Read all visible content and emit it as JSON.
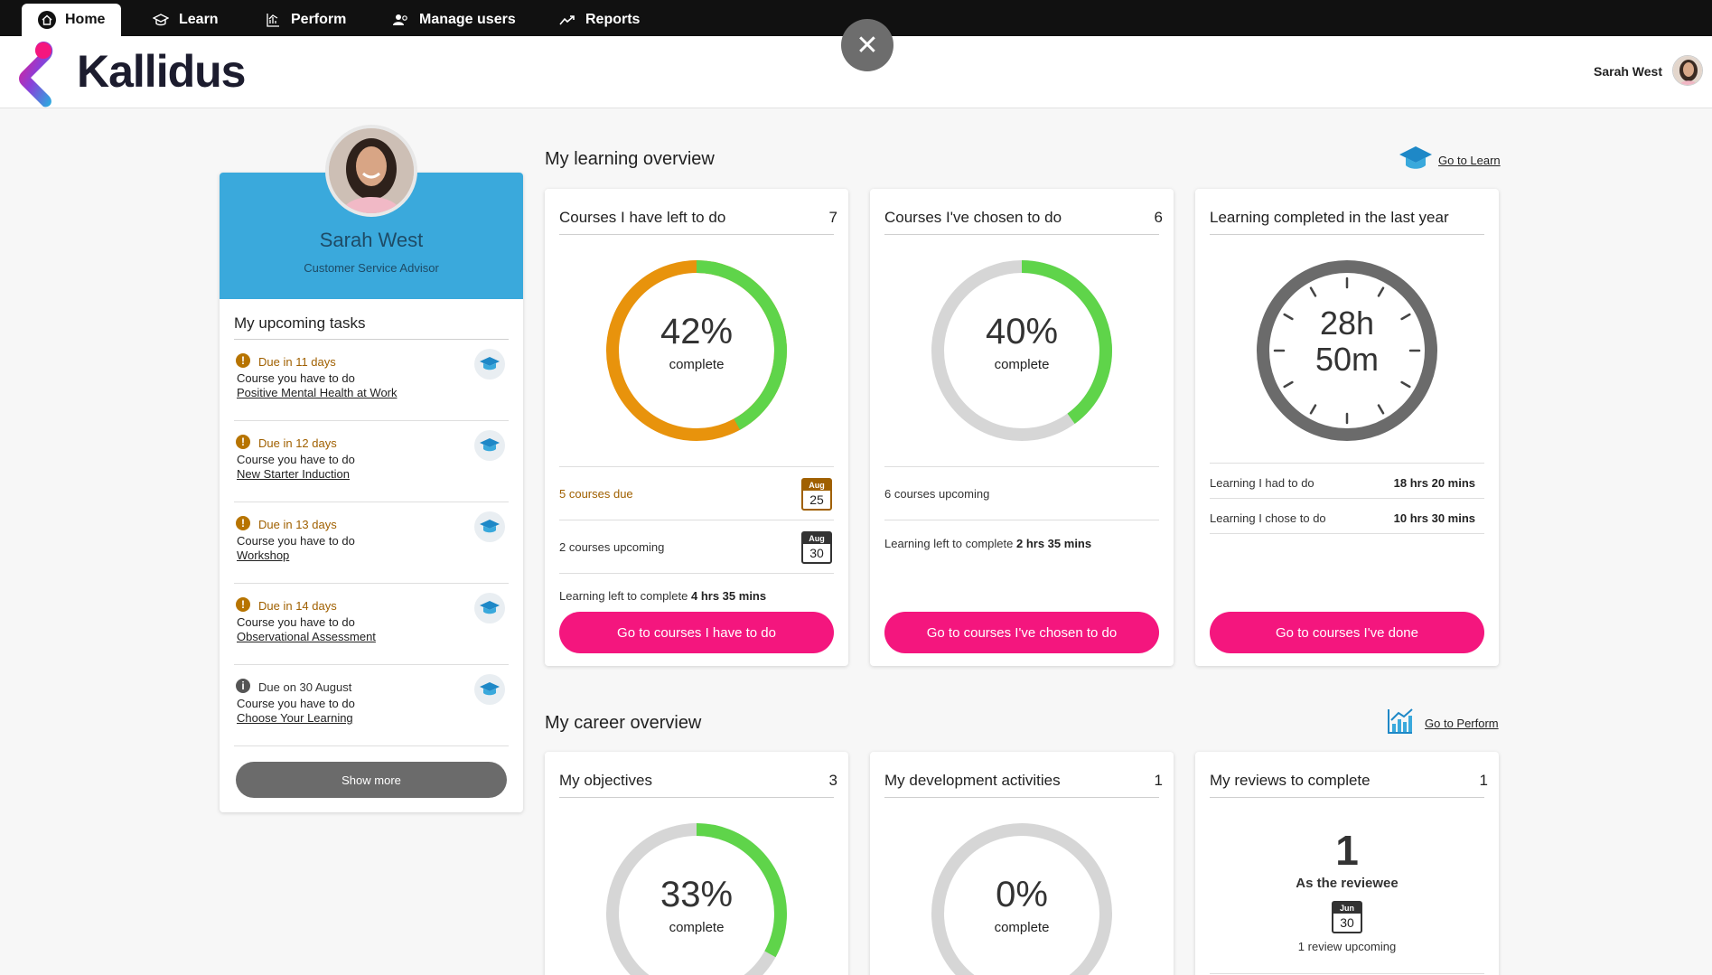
{
  "nav": {
    "tabs": [
      {
        "label": "Home",
        "icon": "home-icon"
      },
      {
        "label": "Learn",
        "icon": "graduation-cap-icon"
      },
      {
        "label": "Perform",
        "icon": "chart-icon"
      },
      {
        "label": "Manage users",
        "icon": "users-icon"
      },
      {
        "label": "Reports",
        "icon": "trend-icon"
      }
    ]
  },
  "header": {
    "brand": "Kallidus",
    "user_name": "Sarah West",
    "close_icon": "close-icon"
  },
  "profile": {
    "name": "Sarah West",
    "role": "Customer Service Advisor",
    "tasks_title": "My upcoming tasks",
    "tasks": [
      {
        "due": "Due in 11 days",
        "kind": "Course you have to do",
        "link": "Positive Mental Health at Work",
        "urgent": true
      },
      {
        "due": "Due in 12 days",
        "kind": "Course you have to do",
        "link": "New Starter Induction",
        "urgent": true
      },
      {
        "due": "Due in 13 days",
        "kind": "Course you have to do",
        "link": "Workshop",
        "urgent": true
      },
      {
        "due": "Due in 14 days",
        "kind": "Course you have to do",
        "link": "Observational Assessment",
        "urgent": true
      },
      {
        "due": "Due on 30 August",
        "kind": "Course you have to do",
        "link": "Choose Your Learning",
        "urgent": false
      }
    ],
    "show_more": "Show more"
  },
  "learning": {
    "title": "My learning overview",
    "link": "Go to Learn",
    "cards": {
      "left_to_do": {
        "title": "Courses I have left to do",
        "count": "7",
        "pct": "42%",
        "pct_value": 0.42,
        "sub": "complete",
        "due_text": "5 courses due",
        "due_cal_month": "Aug",
        "due_cal_day": "25",
        "upcoming_text": "2 courses upcoming",
        "up_cal_month": "Aug",
        "up_cal_day": "30",
        "left_label": "Learning left to complete",
        "left_value": "4 hrs 35 mins",
        "button": "Go to courses I have to do"
      },
      "chosen": {
        "title": "Courses I've chosen to do",
        "count": "6",
        "pct": "40%",
        "pct_value": 0.4,
        "sub": "complete",
        "upcoming_text": "6 courses upcoming",
        "left_label": "Learning left to complete",
        "left_value": "2 hrs 35 mins",
        "button": "Go to courses I've chosen to do"
      },
      "completed": {
        "title": "Learning completed in the last year",
        "hours": "28h",
        "mins": "50m",
        "had_label": "Learning I had to do",
        "had_value": "18 hrs 20 mins",
        "chose_label": "Learning I chose to do",
        "chose_value": "10 hrs 30 mins",
        "button": "Go to courses I've done"
      }
    }
  },
  "career": {
    "title": "My career overview",
    "link": "Go to Perform",
    "cards": {
      "objectives": {
        "title": "My objectives",
        "count": "3",
        "pct": "33%",
        "pct_value": 0.33,
        "sub": "complete"
      },
      "development": {
        "title": "My development activities",
        "count": "1",
        "pct": "0%",
        "pct_value": 0,
        "sub": "complete"
      },
      "reviews": {
        "title": "My reviews to complete",
        "count": "1",
        "big": "1",
        "as_label": "As the reviewee",
        "cal_month": "Jun",
        "cal_day": "30",
        "upcoming": "1 review upcoming"
      }
    }
  },
  "colors": {
    "accent": "#f4167e",
    "green": "#5fd44a",
    "orange": "#e8930c",
    "blue": "#3aa9dc",
    "grey": "#d6d6d6"
  }
}
